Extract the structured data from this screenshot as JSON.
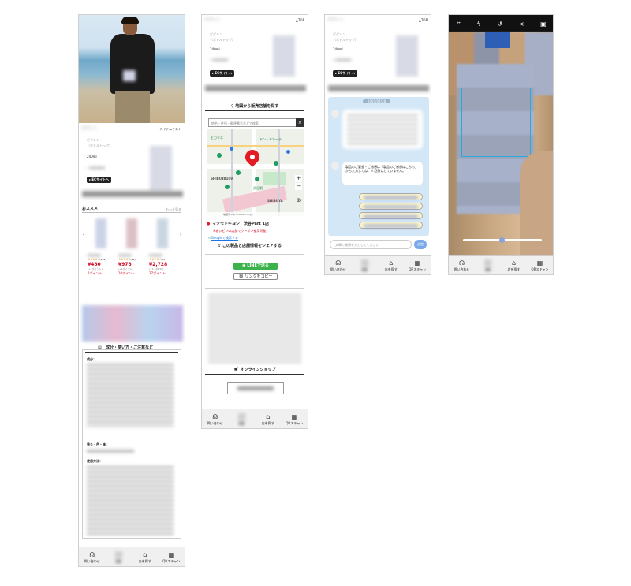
{
  "header": {
    "top_label": "▲TOP"
  },
  "product": {
    "brand": "ピグレン",
    "name_line2": "（ボトルトップ）",
    "volume": "240ml",
    "ec_button": "▸ ECサイトへ",
    "item_list": "▾アイテムリスト"
  },
  "recommend": {
    "title": "おススメ",
    "more": "もっと見る",
    "items": [
      {
        "stars": "★★★★★",
        "count": "(149)",
        "price": "¥480",
        "sub": "(+1ポイント)",
        "points": "1ポイント"
      },
      {
        "stars": "★★★★☆",
        "count": "(11)",
        "price": "¥978",
        "sub": "(+1ポイント)",
        "points": "10ポイント"
      },
      {
        "stars": "★★★★☆",
        "count": "(5)",
        "price": "¥2,728",
        "sub": "(+2,726/30)",
        "points": "27ポイント"
      }
    ]
  },
  "ingredients": {
    "heading": "成分・使い方・ご注意など",
    "label_ingredients": "成分：",
    "label_scent": "香り・色・味：",
    "label_usage": "使用方法："
  },
  "footer": {
    "contact": "問い合わせ",
    "find_store": "店を探す",
    "qr_scan": "QRスキャン"
  },
  "store_search": {
    "heading": "地図から販売店舗を探す",
    "placeholder": "地名・住所・郵便番号などで検索",
    "store_name": "マツモトキヨシ　渋谷Part 1店",
    "note": "※赤いピンの店舗でクーポン使用可能",
    "google_link": "Googleで検索する",
    "share": "この製品と店舗情報をシェアする",
    "line_button": "LINEで送る",
    "copy_button": "リンクをコピー",
    "map_labels": [
      "SHIBUYA109",
      "SHIBUYA",
      "渋谷駅",
      "ドン・キホーテ",
      "ヒカリエ"
    ],
    "map_footer": "地図データ ©2023 Google",
    "online_heading": "オンラインショップ"
  },
  "chat": {
    "date": "2021/07/28",
    "bot_message": "製品のご要望・ご感想は「製品のご感想はこちら」から入力してね。※ 回答はしていません。",
    "input_placeholder": "文章で質問を入力してください",
    "send": "送信"
  },
  "scanner": {
    "icons": [
      "scan-mode-icon",
      "flash-icon",
      "history-icon",
      "share-icon",
      "gallery-icon"
    ]
  },
  "colors": {
    "accent_red": "#d0021b",
    "line_green": "#3bb24a",
    "chat_bg": "#d3e7f7",
    "scanner_frame": "#29a9e0"
  }
}
